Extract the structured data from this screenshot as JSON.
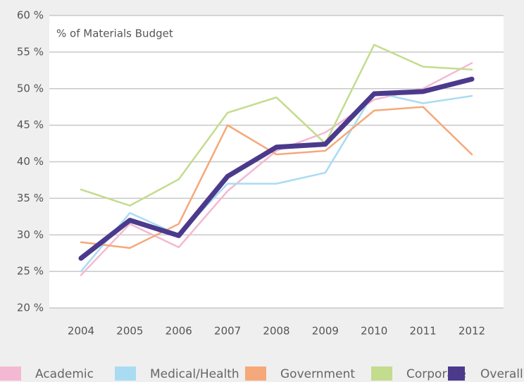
{
  "chart_data": {
    "type": "line",
    "annotation": "% of Materials Budget",
    "categories": [
      "2004",
      "2005",
      "2006",
      "2007",
      "2008",
      "2009",
      "2010",
      "2011",
      "2012"
    ],
    "series": [
      {
        "name": "Academic",
        "color": "#f4b8d2",
        "values": [
          24.5,
          31.5,
          28.3,
          36,
          41.5,
          44,
          48.5,
          50,
          53.5
        ]
      },
      {
        "name": "Medical/Health",
        "color": "#a9dcf2",
        "values": [
          25,
          33,
          30,
          37,
          37,
          38.5,
          49.5,
          48,
          49
        ]
      },
      {
        "name": "Government",
        "color": "#f5a87a",
        "values": [
          29,
          28.2,
          31.5,
          45,
          41,
          41.5,
          47,
          47.5,
          41
        ]
      },
      {
        "name": "Corporate",
        "color": "#c3dc8e",
        "values": [
          36.2,
          34,
          37.6,
          46.7,
          48.8,
          42.5,
          56,
          53,
          52.6
        ]
      },
      {
        "name": "Overall",
        "color": "#4b3a8c",
        "values": [
          26.8,
          32,
          29.9,
          38,
          42,
          42.4,
          49.3,
          49.6,
          51.3
        ]
      }
    ],
    "ylim": [
      20,
      60
    ],
    "yticks": [
      {
        "value": 20,
        "label": "20 %"
      },
      {
        "value": 25,
        "label": "25 %"
      },
      {
        "value": 30,
        "label": "30 %"
      },
      {
        "value": 35,
        "label": "35 %"
      },
      {
        "value": 40,
        "label": "40 %"
      },
      {
        "value": 45,
        "label": "45 %"
      },
      {
        "value": 50,
        "label": "50 %"
      },
      {
        "value": 55,
        "label": "55 %"
      },
      {
        "value": 60,
        "label": "60 %"
      }
    ],
    "grid": true,
    "legend": "bottom"
  }
}
